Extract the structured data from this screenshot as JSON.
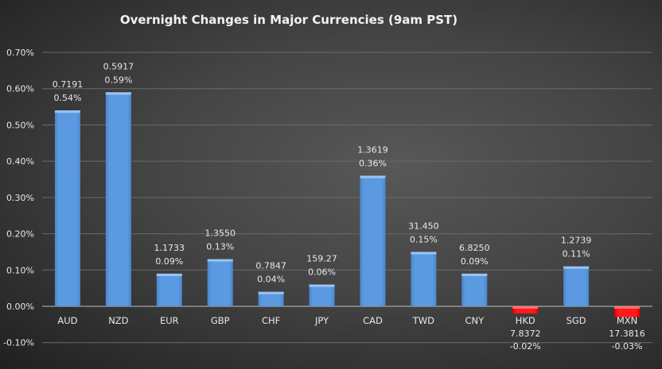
{
  "chart_data": {
    "type": "bar",
    "title": "Overnight Changes in Major Currencies (9am PST)",
    "xlabel": "",
    "ylabel": "",
    "ylim": [
      -0.1,
      0.7
    ],
    "yticks": [
      "0.70%",
      "0.60%",
      "0.50%",
      "0.40%",
      "0.30%",
      "0.20%",
      "0.10%",
      "0.00%",
      "-0.10%"
    ],
    "grid": true,
    "legend": "none",
    "categories": [
      "AUD",
      "NZD",
      "EUR",
      "GBP",
      "CHF",
      "JPY",
      "CAD",
      "TWD",
      "CNY",
      "HKD",
      "SGD",
      "MXN"
    ],
    "values": [
      0.54,
      0.59,
      0.09,
      0.13,
      0.04,
      0.06,
      0.36,
      0.15,
      0.09,
      -0.02,
      0.11,
      -0.03
    ],
    "rates": [
      "0.7191",
      "0.5917",
      "1.1733",
      "1.3550",
      "0.7847",
      "159.27",
      "1.3619",
      "31.450",
      "6.8250",
      "7.8372",
      "1.2739",
      "17.3816"
    ],
    "value_labels": [
      "0.54%",
      "0.59%",
      "0.09%",
      "0.13%",
      "0.04%",
      "0.06%",
      "0.36%",
      "0.15%",
      "0.09%",
      "-0.02%",
      "0.11%",
      "-0.03%"
    ],
    "colors": {
      "positive": "#5b9ae0",
      "negative": "#ff1a1a",
      "gridline": "#6a6a6a",
      "zero_line": "#bfbfbf"
    }
  }
}
